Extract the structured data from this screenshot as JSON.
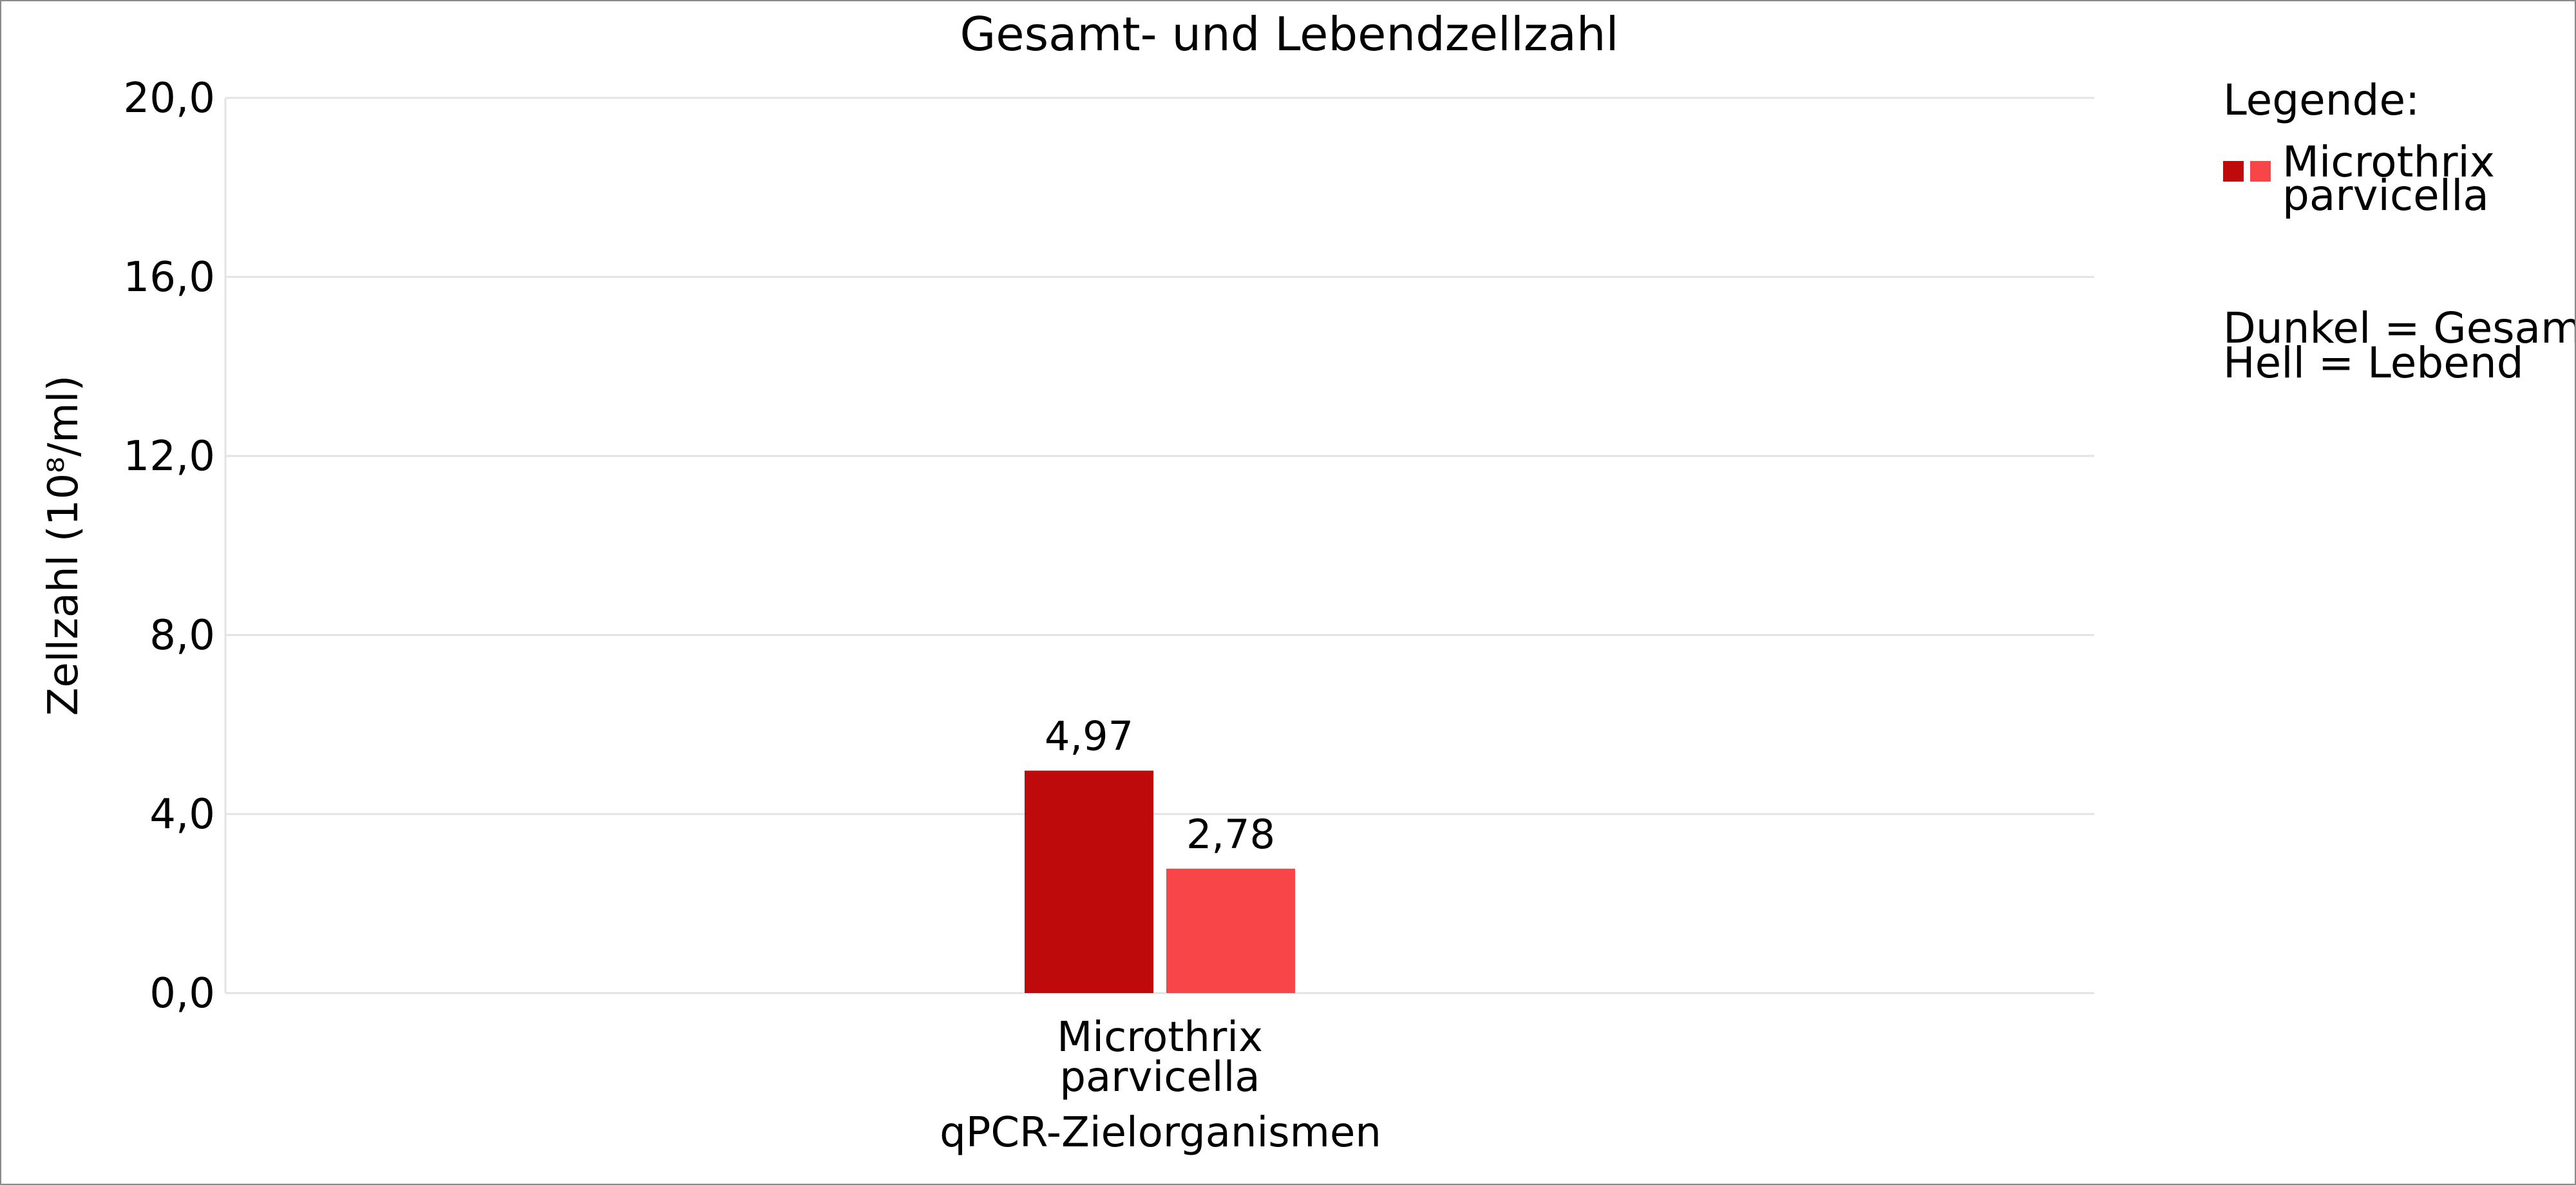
{
  "chart_data": {
    "type": "bar",
    "title": "Gesamt- und Lebendzellzahl",
    "xlabel": "qPCR-Zielorganismen",
    "ylabel": "Zellzahl (10⁸/ml)",
    "ylim": [
      0,
      20
    ],
    "yticks": [
      "0,0",
      "4,0",
      "8,0",
      "12,0",
      "16,0",
      "20,0"
    ],
    "ytick_values": [
      0,
      4,
      8,
      12,
      16,
      20
    ],
    "grid": true,
    "categories": [
      [
        "Microthrix",
        "parvicella"
      ]
    ],
    "series": [
      {
        "values": [
          4.97
        ],
        "labels": [
          "4,97"
        ],
        "color": "#bf0a0c"
      },
      {
        "values": [
          2.78
        ],
        "labels": [
          "2,78"
        ],
        "color": "#f84648"
      }
    ],
    "legend": {
      "placement": "right",
      "heading": "Legende:",
      "entries": [
        {
          "label_lines": [
            "Microthrix",
            "parvicella"
          ],
          "colors": [
            "#bf0a0c",
            "#f84648"
          ]
        }
      ],
      "notes": [
        "Dunkel = Gesamt",
        "Hell = Lebend"
      ]
    }
  }
}
